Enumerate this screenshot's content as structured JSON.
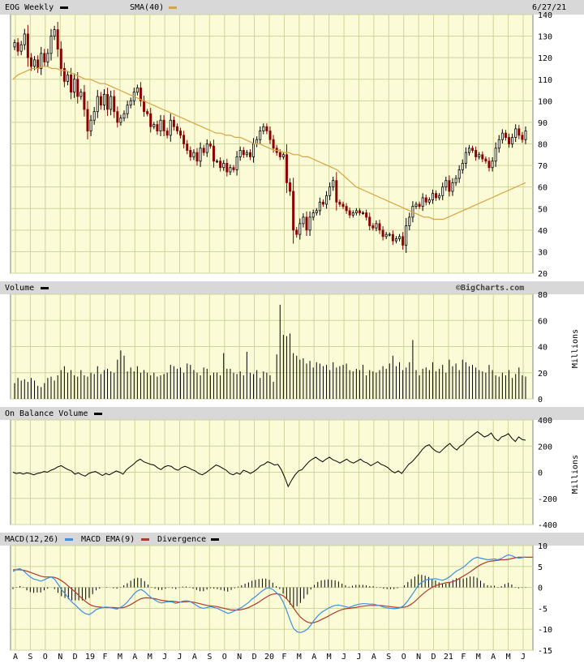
{
  "colors": {
    "plot_bg": "#fbfbd7",
    "grid": "#cfd49a",
    "header_bg": "#d8d8d8",
    "up_candle": "#000000",
    "down_candle": "#8b0000",
    "sma": "#d9a441",
    "macd": "#3b8fe6",
    "signal": "#b03a2e",
    "line": "#000000"
  },
  "chart_data": [
    {
      "panel": "price",
      "type": "candlestick",
      "title": "EOG Weekly",
      "overlay_label": "SMA(40)",
      "date_label": "6/27/21",
      "ylim": [
        20,
        140
      ],
      "yticks": [
        20,
        30,
        40,
        50,
        60,
        70,
        80,
        90,
        100,
        110,
        120,
        130,
        140
      ],
      "grid": true,
      "close": [
        127,
        123,
        126,
        131,
        120,
        116,
        119,
        115,
        122,
        118,
        122,
        130,
        133,
        124,
        115,
        109,
        112,
        104,
        110,
        102,
        104,
        96,
        86,
        91,
        95,
        102,
        98,
        103,
        96,
        102,
        95,
        90,
        92,
        94,
        98,
        100,
        104,
        106,
        100,
        95,
        94,
        88,
        89,
        86,
        91,
        86,
        84,
        91,
        88,
        86,
        84,
        80,
        77,
        74,
        76,
        72,
        78,
        76,
        80,
        79,
        72,
        72,
        69,
        71,
        67,
        69,
        68,
        74,
        77,
        75,
        76,
        74,
        80,
        82,
        86,
        88,
        86,
        82,
        78,
        76,
        74,
        75,
        62,
        58,
        40,
        38,
        43,
        46,
        40,
        46,
        48,
        49,
        53,
        52,
        56,
        60,
        63,
        53,
        52,
        51,
        49,
        47,
        48,
        49,
        48,
        48,
        46,
        42,
        41,
        43,
        40,
        37,
        38,
        38,
        35,
        36,
        37,
        33,
        42,
        46,
        51,
        52,
        51,
        55,
        53,
        54,
        57,
        55,
        56,
        60,
        63,
        58,
        62,
        64,
        68,
        71,
        76,
        78,
        77,
        74,
        75,
        73,
        72,
        69,
        72,
        78,
        82,
        85,
        83,
        80,
        83,
        87,
        84,
        82,
        86
      ],
      "sma": [
        110,
        112,
        113,
        114,
        115,
        115,
        116,
        116,
        115,
        115,
        114,
        114,
        113,
        112,
        111,
        110,
        110,
        109,
        108,
        108,
        107,
        106,
        105,
        104,
        103,
        102,
        101,
        100,
        99,
        98,
        97,
        96,
        95,
        94,
        93,
        92,
        91,
        90,
        89,
        88,
        87,
        86,
        85,
        85,
        84,
        84,
        83,
        83,
        82,
        81,
        80,
        80,
        79,
        78,
        77,
        77,
        76,
        76,
        75,
        75,
        74,
        74,
        73,
        72,
        71,
        70,
        69,
        68,
        66,
        64,
        62,
        60,
        59,
        58,
        57,
        56,
        55,
        54,
        53,
        52,
        51,
        50,
        49,
        48,
        47,
        46,
        46,
        45,
        45,
        45,
        46,
        47,
        48,
        49,
        50,
        51,
        52,
        53,
        54,
        55,
        56,
        57,
        58,
        59,
        60,
        61,
        62
      ],
      "x_tick_labels": [
        "A",
        "S",
        "O",
        "N",
        "D",
        "19",
        "F",
        "M",
        "A",
        "M",
        "J",
        "J",
        "A",
        "S",
        "O",
        "N",
        "D",
        "20",
        "F",
        "M",
        "A",
        "M",
        "J",
        "J",
        "A",
        "S",
        "O",
        "N",
        "D",
        "21",
        "F",
        "M",
        "A",
        "M",
        "J"
      ]
    },
    {
      "panel": "volume",
      "type": "bar",
      "title": "Volume",
      "watermark": "©BigCharts.com",
      "ylabel": "Millions",
      "ylim": [
        0,
        80
      ],
      "yticks": [
        0,
        20,
        40,
        60,
        80
      ],
      "values": [
        12,
        16,
        14,
        15,
        13,
        16,
        14,
        10,
        9,
        12,
        16,
        17,
        14,
        18,
        22,
        25,
        20,
        22,
        18,
        17,
        22,
        18,
        17,
        20,
        19,
        25,
        19,
        22,
        23,
        21,
        20,
        30,
        37,
        33,
        21,
        24,
        21,
        25,
        20,
        22,
        20,
        18,
        20,
        17,
        18,
        19,
        20,
        26,
        25,
        23,
        24,
        20,
        27,
        26,
        22,
        20,
        18,
        24,
        23,
        18,
        20,
        20,
        18,
        35,
        23,
        23,
        20,
        19,
        21,
        18,
        36,
        20,
        19,
        22,
        16,
        21,
        20,
        18,
        13,
        34,
        72,
        49,
        48,
        50,
        35,
        33,
        30,
        31,
        27,
        29,
        24,
        28,
        27,
        25,
        26,
        22,
        28,
        24,
        25,
        26,
        27,
        22,
        21,
        23,
        22,
        26,
        18,
        22,
        21,
        20,
        22,
        25,
        23,
        27,
        33,
        25,
        28,
        22,
        24,
        28,
        45,
        22,
        18,
        23,
        24,
        22,
        28,
        21,
        23,
        26,
        20,
        30,
        25,
        27,
        22,
        30,
        28,
        25,
        26,
        24,
        22,
        21,
        20,
        26,
        22,
        18,
        17,
        20,
        18,
        22,
        16,
        19,
        24,
        18,
        17
      ]
    },
    {
      "panel": "obv",
      "type": "line",
      "title": "On Balance Volume",
      "ylabel": "Millions",
      "ylim": [
        -400,
        400
      ],
      "yticks": [
        -400,
        -200,
        0,
        200,
        400
      ],
      "values": [
        0,
        -10,
        -5,
        -15,
        -5,
        -10,
        -20,
        -10,
        -5,
        5,
        0,
        15,
        25,
        40,
        50,
        35,
        20,
        10,
        -15,
        -5,
        -20,
        -30,
        -10,
        0,
        5,
        -10,
        -25,
        -10,
        -20,
        -5,
        10,
        0,
        -15,
        20,
        40,
        60,
        85,
        100,
        80,
        70,
        60,
        55,
        35,
        20,
        40,
        50,
        45,
        25,
        15,
        35,
        45,
        35,
        20,
        10,
        -10,
        -20,
        -5,
        15,
        35,
        55,
        45,
        30,
        15,
        -10,
        -20,
        -5,
        -15,
        15,
        5,
        -10,
        5,
        25,
        50,
        60,
        80,
        70,
        55,
        60,
        20,
        -40,
        -110,
        -60,
        -20,
        10,
        20,
        50,
        80,
        100,
        115,
        95,
        80,
        100,
        115,
        95,
        85,
        70,
        85,
        100,
        80,
        70,
        85,
        100,
        80,
        70,
        50,
        65,
        80,
        60,
        50,
        35,
        10,
        -5,
        10,
        -10,
        25,
        60,
        80,
        110,
        140,
        175,
        200,
        210,
        180,
        160,
        150,
        175,
        200,
        220,
        190,
        170,
        200,
        215,
        250,
        270,
        290,
        310,
        290,
        270,
        280,
        300,
        260,
        240,
        270,
        280,
        295,
        260,
        235,
        270,
        250,
        245
      ]
    },
    {
      "panel": "macd",
      "type": "line",
      "title": "MACD(12,26)",
      "series_labels": [
        "MACD(12,26)",
        "MACD EMA(9)",
        "Divergence"
      ],
      "ylim": [
        -15,
        10
      ],
      "yticks": [
        -15,
        -10,
        -5,
        0,
        5,
        10
      ],
      "macd": [
        3.8,
        4.3,
        4.5,
        4.0,
        3.2,
        2.5,
        2.0,
        1.8,
        1.5,
        1.8,
        2.2,
        2.5,
        2.0,
        0.8,
        -0.5,
        -1.5,
        -2.5,
        -3.5,
        -4.2,
        -5.0,
        -5.8,
        -6.3,
        -6.5,
        -6.0,
        -5.3,
        -5.0,
        -4.8,
        -4.7,
        -4.8,
        -5.0,
        -5.2,
        -4.8,
        -4.3,
        -3.5,
        -2.5,
        -1.5,
        -0.8,
        -0.5,
        -1.0,
        -1.8,
        -2.5,
        -3.0,
        -3.5,
        -3.7,
        -3.5,
        -3.4,
        -3.5,
        -3.8,
        -3.6,
        -3.3,
        -3.2,
        -3.3,
        -3.8,
        -4.3,
        -4.8,
        -5.0,
        -4.8,
        -4.6,
        -4.8,
        -5.0,
        -5.4,
        -5.8,
        -6.2,
        -6.0,
        -5.6,
        -5.2,
        -4.8,
        -4.2,
        -3.6,
        -2.8,
        -2.2,
        -1.5,
        -0.8,
        -0.3,
        -0.1,
        -0.5,
        -1.2,
        -2.0,
        -3.5,
        -5.5,
        -7.8,
        -9.8,
        -10.6,
        -10.8,
        -10.5,
        -10.0,
        -9.0,
        -7.8,
        -6.8,
        -6.0,
        -5.5,
        -5.0,
        -4.6,
        -4.3,
        -4.2,
        -4.4,
        -4.6,
        -4.8,
        -4.5,
        -4.2,
        -4.0,
        -3.9,
        -3.9,
        -4.0,
        -4.0,
        -4.2,
        -4.4,
        -4.7,
        -4.9,
        -5.0,
        -5.1,
        -5.0,
        -4.8,
        -4.2,
        -3.2,
        -2.0,
        -0.8,
        0.5,
        1.2,
        1.7,
        2.0,
        2.0,
        2.1,
        1.9,
        1.7,
        2.0,
        2.5,
        3.2,
        3.9,
        4.3,
        4.8,
        5.5,
        6.3,
        6.9,
        7.2,
        7.0,
        6.8,
        6.6,
        6.7,
        6.8,
        6.6,
        6.9,
        7.4,
        7.8,
        7.6,
        7.2,
        7.0,
        7.1,
        7.3
      ],
      "signal": [
        4.2,
        4.2,
        4.2,
        4.1,
        3.9,
        3.6,
        3.3,
        3.0,
        2.7,
        2.5,
        2.5,
        2.5,
        2.4,
        2.1,
        1.6,
        1.0,
        0.3,
        -0.4,
        -1.1,
        -1.9,
        -2.7,
        -3.4,
        -4.0,
        -4.4,
        -4.6,
        -4.7,
        -4.8,
        -4.8,
        -4.8,
        -4.8,
        -4.9,
        -4.9,
        -4.8,
        -4.5,
        -4.1,
        -3.6,
        -3.1,
        -2.7,
        -2.5,
        -2.5,
        -2.6,
        -2.7,
        -2.9,
        -3.1,
        -3.2,
        -3.3,
        -3.3,
        -3.4,
        -3.5,
        -3.5,
        -3.4,
        -3.4,
        -3.5,
        -3.7,
        -3.9,
        -4.1,
        -4.3,
        -4.4,
        -4.5,
        -4.6,
        -4.8,
        -5.0,
        -5.2,
        -5.4,
        -5.4,
        -5.4,
        -5.3,
        -5.1,
        -4.8,
        -4.4,
        -4.0,
        -3.5,
        -2.9,
        -2.4,
        -1.9,
        -1.6,
        -1.5,
        -1.6,
        -2.0,
        -2.7,
        -3.7,
        -4.9,
        -6.1,
        -7.1,
        -7.8,
        -8.3,
        -8.5,
        -8.4,
        -8.1,
        -7.7,
        -7.3,
        -6.9,
        -6.4,
        -6.0,
        -5.6,
        -5.3,
        -5.1,
        -5.0,
        -4.9,
        -4.8,
        -4.6,
        -4.5,
        -4.4,
        -4.3,
        -4.3,
        -4.3,
        -4.3,
        -4.4,
        -4.5,
        -4.6,
        -4.7,
        -4.8,
        -4.8,
        -4.7,
        -4.5,
        -4.0,
        -3.4,
        -2.6,
        -1.8,
        -1.1,
        -0.5,
        0.0,
        0.4,
        0.7,
        0.9,
        1.1,
        1.2,
        1.4,
        1.7,
        2.2,
        2.7,
        3.2,
        3.7,
        4.3,
        4.9,
        5.4,
        5.8,
        6.1,
        6.3,
        6.4,
        6.5,
        6.6,
        6.6,
        6.7,
        6.9,
        7.1,
        7.2,
        7.2,
        7.2,
        7.2,
        7.2
      ],
      "x_tick_labels": [
        "A",
        "S",
        "O",
        "N",
        "D",
        "19",
        "F",
        "M",
        "A",
        "M",
        "J",
        "J",
        "A",
        "S",
        "O",
        "N",
        "D",
        "20",
        "F",
        "M",
        "A",
        "M",
        "J",
        "J",
        "A",
        "S",
        "O",
        "N",
        "D",
        "21",
        "F",
        "M",
        "A",
        "M",
        "J"
      ]
    }
  ]
}
